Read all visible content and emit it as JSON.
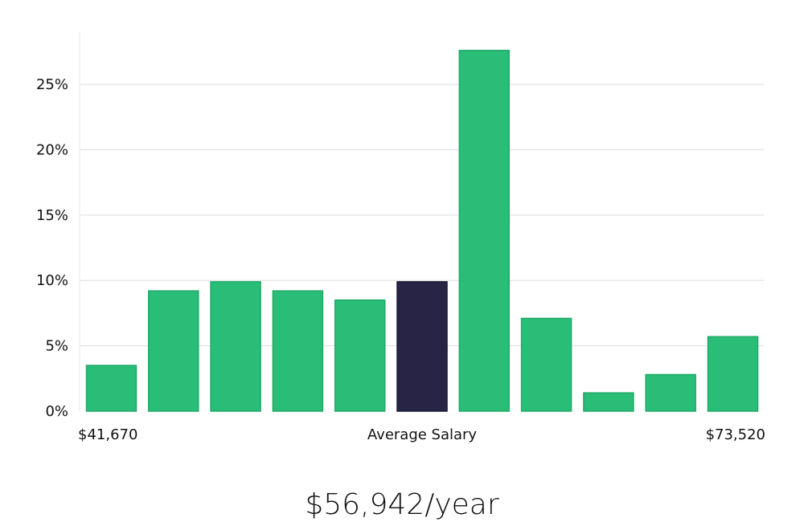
{
  "chart_data": {
    "type": "bar",
    "title": "",
    "xlabel": "Average Salary",
    "ylabel": "",
    "x_min_label": "$41,670",
    "x_max_label": "$73,520",
    "ylim": [
      0,
      29
    ],
    "yticks": [
      0,
      5,
      10,
      15,
      20,
      25
    ],
    "ytick_labels": [
      "0%",
      "5%",
      "10%",
      "15%",
      "20%",
      "25%"
    ],
    "values": [
      3.5,
      9.2,
      9.9,
      9.2,
      8.5,
      9.9,
      27.6,
      7.1,
      1.4,
      2.8,
      5.7
    ],
    "highlight_index": 5,
    "grid": true,
    "legend": "none",
    "colors": {
      "bar": "#2abd78",
      "bar_edge": "#1faa68",
      "highlight": "#282445",
      "grid": "#dddddd",
      "axis": "#e4e4e4"
    }
  },
  "salary_text": "$56,942/year"
}
